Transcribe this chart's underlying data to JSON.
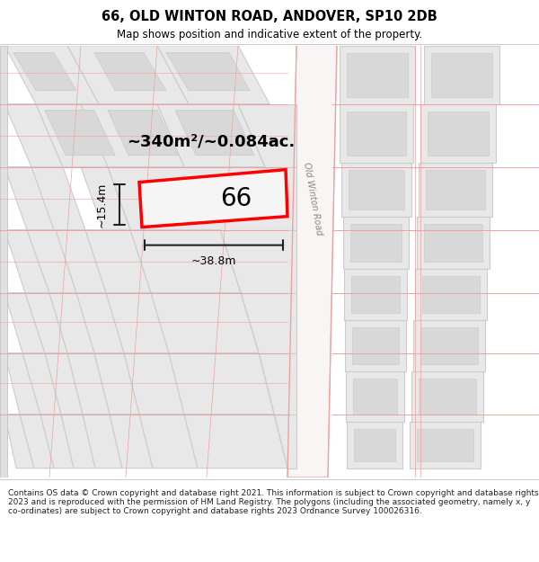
{
  "title": "66, OLD WINTON ROAD, ANDOVER, SP10 2DB",
  "subtitle": "Map shows position and indicative extent of the property.",
  "footer": "Contains OS data © Crown copyright and database right 2021. This information is subject to Crown copyright and database rights 2023 and is reproduced with the permission of HM Land Registry. The polygons (including the associated geometry, namely x, y co-ordinates) are subject to Crown copyright and database rights 2023 Ordnance Survey 100026316.",
  "bg_color": "#ffffff",
  "map_bg": "#ffffff",
  "road_label": "Old Winton Road",
  "area_label": "~340m²/~0.084ac.",
  "number_label": "66",
  "dim_width": "~38.8m",
  "dim_height": "~15.4m",
  "road_line_color": "#f0a0a0",
  "building_fill": "#e8e8e8",
  "building_edge": "#cccccc",
  "plot_fill": "#f5f5f5",
  "plot_edge": "#ff0000"
}
